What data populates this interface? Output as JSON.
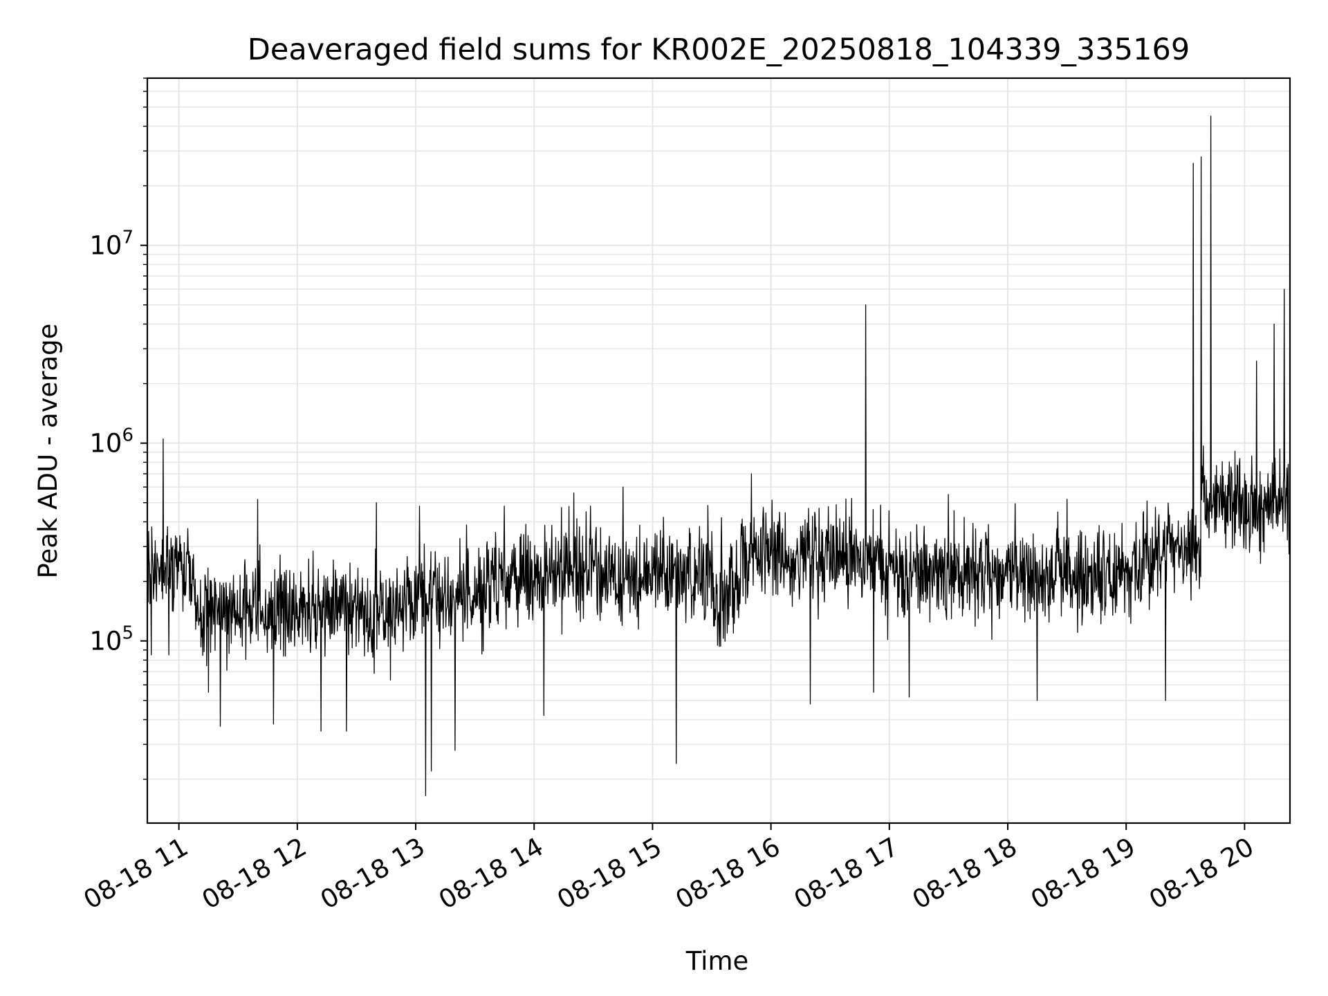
{
  "chart_data": {
    "type": "line",
    "title": "Deaveraged field sums for KR002E_20250818_104339_335169",
    "xlabel": "Time",
    "ylabel": "Peak ADU - average",
    "yscale": "log",
    "xlim": [
      "2025-08-18T10:44",
      "2025-08-18T20:23"
    ],
    "ylim": [
      12000,
      70000000
    ],
    "grid": true,
    "x_ticks": [
      {
        "value": "2025-08-18T11:00",
        "label": "08-18 11"
      },
      {
        "value": "2025-08-18T12:00",
        "label": "08-18 12"
      },
      {
        "value": "2025-08-18T13:00",
        "label": "08-18 13"
      },
      {
        "value": "2025-08-18T14:00",
        "label": "08-18 14"
      },
      {
        "value": "2025-08-18T15:00",
        "label": "08-18 15"
      },
      {
        "value": "2025-08-18T16:00",
        "label": "08-18 16"
      },
      {
        "value": "2025-08-18T17:00",
        "label": "08-18 17"
      },
      {
        "value": "2025-08-18T18:00",
        "label": "08-18 18"
      },
      {
        "value": "2025-08-18T19:00",
        "label": "08-18 19"
      },
      {
        "value": "2025-08-18T20:00",
        "label": "08-18 20"
      }
    ],
    "y_ticks": [
      {
        "value": 100000,
        "base": "10",
        "exponent": "5"
      },
      {
        "value": 1000000,
        "base": "10",
        "exponent": "6"
      },
      {
        "value": 10000000,
        "base": "10",
        "exponent": "7"
      }
    ],
    "line_color": "#000000",
    "grid_color": "#e6e6e6",
    "series": [
      {
        "values": [
          [
            "2025-08-18T10:44",
            330000
          ],
          [
            "2025-08-18T10:46",
            85000
          ],
          [
            "2025-08-18T10:52",
            1050000
          ],
          [
            "2025-08-18T10:55",
            85000
          ],
          [
            "2025-08-18T11:00",
            280000
          ],
          [
            "2025-08-18T11:10",
            120000
          ],
          [
            "2025-08-18T11:15",
            55000
          ],
          [
            "2025-08-18T11:21",
            37000
          ],
          [
            "2025-08-18T11:30",
            120000
          ],
          [
            "2025-08-18T11:40",
            520000
          ],
          [
            "2025-08-18T11:48",
            38000
          ],
          [
            "2025-08-18T12:00",
            150000
          ],
          [
            "2025-08-18T12:12",
            35000
          ],
          [
            "2025-08-18T12:25",
            35000
          ],
          [
            "2025-08-18T12:30",
            150000
          ],
          [
            "2025-08-18T12:40",
            500000
          ],
          [
            "2025-08-18T12:50",
            130000
          ],
          [
            "2025-08-18T13:02",
            480000
          ],
          [
            "2025-08-18T13:05",
            16500
          ],
          [
            "2025-08-18T13:08",
            22000
          ],
          [
            "2025-08-18T13:20",
            28000
          ],
          [
            "2025-08-18T13:35",
            150000
          ],
          [
            "2025-08-18T13:45",
            480000
          ],
          [
            "2025-08-18T14:00",
            200000
          ],
          [
            "2025-08-18T14:05",
            42000
          ],
          [
            "2025-08-18T14:20",
            560000
          ],
          [
            "2025-08-18T14:30",
            250000
          ],
          [
            "2025-08-18T14:45",
            600000
          ],
          [
            "2025-08-18T15:00",
            180000
          ],
          [
            "2025-08-18T15:12",
            24000
          ],
          [
            "2025-08-18T15:20",
            170000
          ],
          [
            "2025-08-18T15:35",
            420000
          ],
          [
            "2025-08-18T15:40",
            300000
          ],
          [
            "2025-08-18T15:50",
            700000
          ],
          [
            "2025-08-18T16:00",
            270000
          ],
          [
            "2025-08-18T16:20",
            48000
          ],
          [
            "2025-08-18T16:35",
            300000
          ],
          [
            "2025-08-18T16:48",
            5000000
          ],
          [
            "2025-08-18T16:52",
            55000
          ],
          [
            "2025-08-18T17:00",
            280000
          ],
          [
            "2025-08-18T17:10",
            52000
          ],
          [
            "2025-08-18T17:20",
            200000
          ],
          [
            "2025-08-18T17:30",
            550000
          ],
          [
            "2025-08-18T17:45",
            130000
          ],
          [
            "2025-08-18T18:00",
            200000
          ],
          [
            "2025-08-18T18:15",
            50000
          ],
          [
            "2025-08-18T18:30",
            520000
          ],
          [
            "2025-08-18T18:45",
            180000
          ],
          [
            "2025-08-18T19:00",
            230000
          ],
          [
            "2025-08-18T19:10",
            350000
          ],
          [
            "2025-08-18T19:20",
            50000
          ],
          [
            "2025-08-18T19:30",
            300000
          ],
          [
            "2025-08-18T19:34",
            26000000
          ],
          [
            "2025-08-18T19:38",
            28000000
          ],
          [
            "2025-08-18T19:43",
            45000000
          ],
          [
            "2025-08-18T19:50",
            350000
          ],
          [
            "2025-08-18T20:00",
            700000
          ],
          [
            "2025-08-18T20:06",
            2600000
          ],
          [
            "2025-08-18T20:10",
            600000
          ],
          [
            "2025-08-18T20:15",
            4000000
          ],
          [
            "2025-08-18T20:20",
            6000000
          ],
          [
            "2025-08-18T20:23",
            550000
          ]
        ]
      }
    ]
  }
}
